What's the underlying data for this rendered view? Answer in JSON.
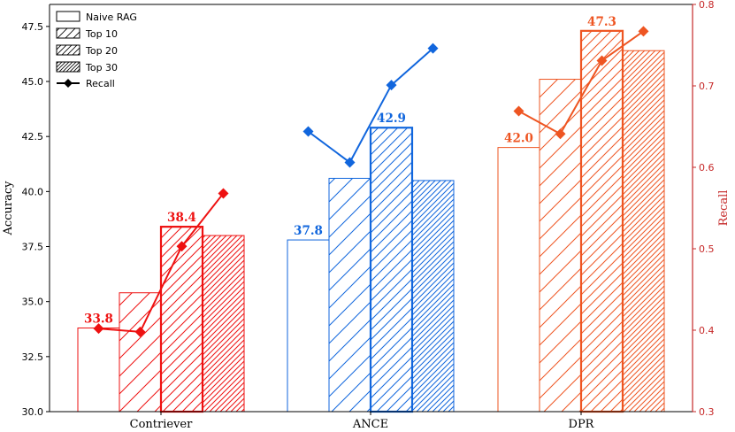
{
  "chart_data": {
    "type": "bar",
    "title": "",
    "xlabel": "",
    "ylabel": "Accuracy",
    "y2label": "Recall",
    "ylim": [
      30,
      48.5
    ],
    "y2lim": [
      0.3,
      0.8
    ],
    "yticks": [
      "30.0",
      "32.5",
      "35.0",
      "37.5",
      "40.0",
      "42.5",
      "45.0",
      "47.5"
    ],
    "y2ticks": [
      "0.3",
      "0.4",
      "0.5",
      "0.6",
      "0.7",
      "0.8"
    ],
    "categories": [
      "Contriever",
      "ANCE",
      "DPR"
    ],
    "category_colors": [
      "#ee1111",
      "#1166dd",
      "#ee5522"
    ],
    "legend_position": "top-left",
    "grid": false,
    "series": [
      {
        "name": "Naive RAG",
        "hatch": "none",
        "values": [
          33.8,
          37.8,
          42.0
        ]
      },
      {
        "name": "Top 10",
        "hatch": "sparse",
        "values": [
          35.4,
          40.6,
          45.1
        ]
      },
      {
        "name": "Top 20",
        "hatch": "medium",
        "values": [
          38.4,
          42.9,
          47.3
        ]
      },
      {
        "name": "Top 30",
        "hatch": "dense",
        "values": [
          38.0,
          40.5,
          46.4
        ]
      }
    ],
    "recall": {
      "name": "Recall",
      "axis": "right",
      "values": [
        [
          0.402,
          0.398,
          0.503,
          0.568
        ],
        [
          0.644,
          0.606,
          0.701,
          0.746
        ],
        [
          0.669,
          0.641,
          0.731,
          0.767
        ]
      ]
    },
    "bar_labels": [
      {
        "category": "Contriever",
        "series": "Naive RAG",
        "text": "33.8"
      },
      {
        "category": "Contriever",
        "series": "Top 20",
        "text": "38.4"
      },
      {
        "category": "ANCE",
        "series": "Naive RAG",
        "text": "37.8"
      },
      {
        "category": "ANCE",
        "series": "Top 20",
        "text": "42.9"
      },
      {
        "category": "DPR",
        "series": "Naive RAG",
        "text": "42.0"
      },
      {
        "category": "DPR",
        "series": "Top 20",
        "text": "47.3"
      }
    ]
  }
}
